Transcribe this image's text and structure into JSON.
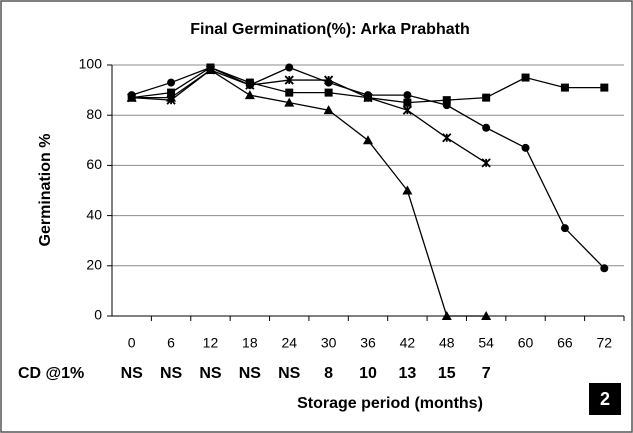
{
  "chart_data": {
    "type": "line",
    "title": "Final Germination(%):  Arka Prabhath",
    "y_label": "Germination %",
    "x_label": "Storage period (months)",
    "categories": [
      "0",
      "6",
      "12",
      "18",
      "24",
      "30",
      "36",
      "42",
      "48",
      "54",
      "60",
      "66",
      "72"
    ],
    "cd_label": "CD @1%",
    "cd_values": [
      "NS",
      "NS",
      "NS",
      "NS",
      "NS",
      8,
      10,
      13,
      15,
      7
    ],
    "badge": "2",
    "ylim": [
      0,
      100
    ],
    "yticks": [
      0,
      20,
      40,
      60,
      80,
      100
    ],
    "grid": true,
    "series": [
      {
        "color": "#000000",
        "marker": "square",
        "values": [
          87,
          89,
          99,
          93,
          89,
          89,
          87,
          85,
          86,
          87,
          95,
          91,
          91
        ]
      },
      {
        "color": "#000000",
        "marker": "circle",
        "values": [
          88,
          93,
          99,
          92,
          99,
          93,
          88,
          88,
          84,
          75,
          67,
          35,
          19
        ]
      },
      {
        "color": "#000000",
        "marker": "triangle",
        "values": [
          87,
          87,
          98,
          88,
          85,
          82,
          70,
          50,
          0,
          0,
          null,
          null,
          null
        ]
      },
      {
        "color": "#000000",
        "marker": "x",
        "values": [
          87,
          86,
          98,
          92,
          94,
          94,
          87,
          82,
          71,
          61,
          null,
          null,
          null
        ]
      }
    ]
  }
}
